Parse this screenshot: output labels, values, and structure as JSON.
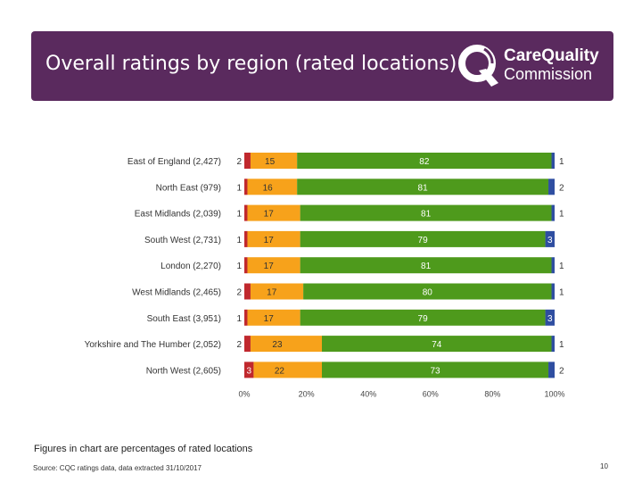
{
  "header": {
    "title": "Overall ratings by region (rated locations)",
    "logo_line1": "CareQuality",
    "logo_line2": "Commission"
  },
  "chart_data": {
    "type": "bar",
    "orientation": "horizontal",
    "stacked": true,
    "categories": [
      "East of England (2,427)",
      "North East (979)",
      "East Midlands (2,039)",
      "South West (2,731)",
      "London (2,270)",
      "West Midlands (2,465)",
      "South East (3,951)",
      "Yorkshire and The Humber (2,052)",
      "North West (2,605)"
    ],
    "series": [
      {
        "color": "#c0282d",
        "values": [
          2,
          1,
          1,
          1,
          1,
          2,
          1,
          2,
          3
        ]
      },
      {
        "color": "#f7a21b",
        "values": [
          15,
          16,
          17,
          17,
          17,
          17,
          17,
          23,
          22
        ]
      },
      {
        "color": "#4e9a1c",
        "values": [
          82,
          81,
          81,
          79,
          81,
          80,
          79,
          74,
          73
        ]
      },
      {
        "color": "#2f4ea1",
        "values": [
          1,
          2,
          1,
          3,
          1,
          1,
          3,
          1,
          2
        ]
      }
    ],
    "x_ticks": [
      "0%",
      "20%",
      "40%",
      "60%",
      "80%",
      "100%"
    ],
    "xlim": [
      0,
      100
    ],
    "legend": "none",
    "grid": false
  },
  "footnote": "Figures in chart are percentages of rated locations",
  "source": "Source: CQC ratings data, data extracted 31/10/2017",
  "page_number": "10"
}
